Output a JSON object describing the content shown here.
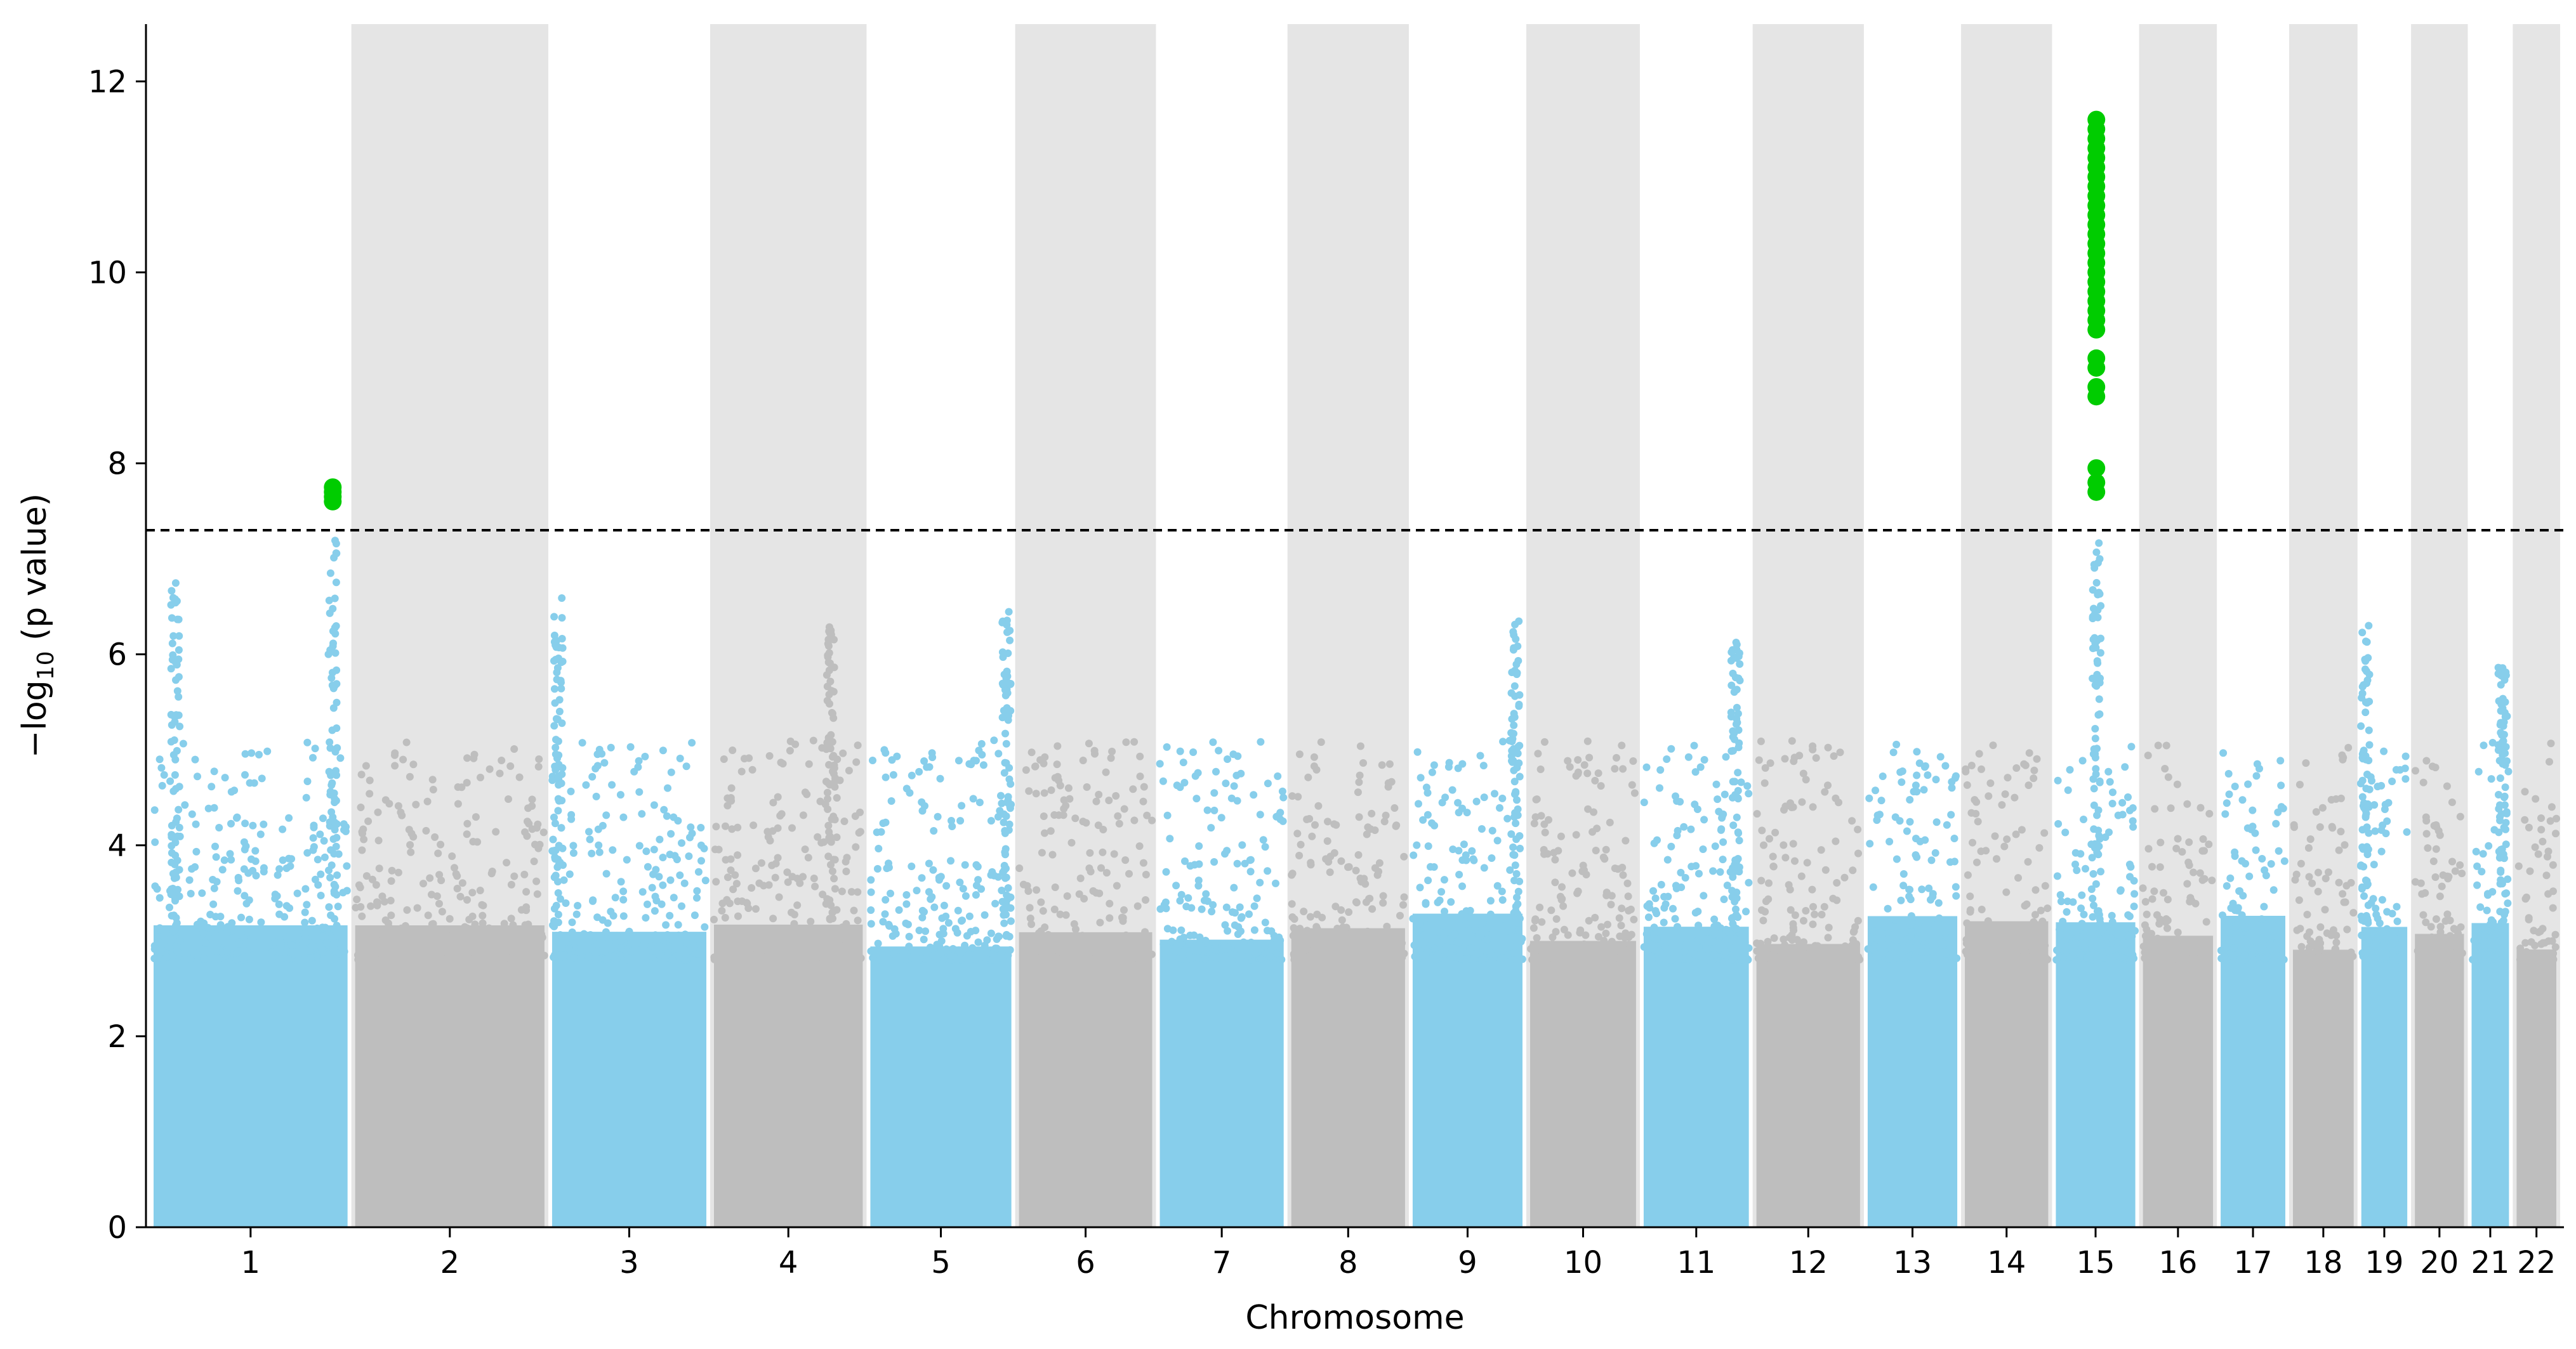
{
  "chart_data": {
    "type": "scatter",
    "xlabel": "Chromosome",
    "ylabel_prefix": "−log",
    "ylabel_sub": "10",
    "ylabel_suffix": " (p value)",
    "ylim": [
      0,
      12.6
    ],
    "yticks": [
      0,
      2,
      4,
      6,
      8,
      10,
      12
    ],
    "grid": false,
    "significance_threshold": 7.3,
    "colors": {
      "odd_chromosome": "#87ceeb",
      "even_chromosome": "#bebebe",
      "significant": "#00cc00",
      "band": "#e5e5e5",
      "threshold_line": "#000000"
    },
    "chromosomes": [
      {
        "label": "1",
        "length_mb": 249
      },
      {
        "label": "2",
        "length_mb": 243
      },
      {
        "label": "3",
        "length_mb": 198
      },
      {
        "label": "4",
        "length_mb": 191
      },
      {
        "label": "5",
        "length_mb": 181
      },
      {
        "label": "6",
        "length_mb": 171
      },
      {
        "label": "7",
        "length_mb": 159
      },
      {
        "label": "8",
        "length_mb": 146
      },
      {
        "label": "9",
        "length_mb": 141
      },
      {
        "label": "10",
        "length_mb": 136
      },
      {
        "label": "11",
        "length_mb": 135
      },
      {
        "label": "12",
        "length_mb": 133
      },
      {
        "label": "13",
        "length_mb": 115
      },
      {
        "label": "14",
        "length_mb": 107
      },
      {
        "label": "15",
        "length_mb": 102
      },
      {
        "label": "16",
        "length_mb": 90
      },
      {
        "label": "17",
        "length_mb": 83
      },
      {
        "label": "18",
        "length_mb": 78
      },
      {
        "label": "19",
        "length_mb": 59
      },
      {
        "label": "20",
        "length_mb": 63
      },
      {
        "label": "21",
        "length_mb": 48
      },
      {
        "label": "22",
        "length_mb": 51
      }
    ],
    "peaks": [
      {
        "chromosome": "1",
        "position_mb": 230,
        "max": 7.2,
        "significant": [
          7.6,
          7.65,
          7.7,
          7.75
        ]
      },
      {
        "chromosome": "1",
        "position_mb": 28,
        "max": 7.0
      },
      {
        "chromosome": "3",
        "position_mb": 8,
        "max": 6.6
      },
      {
        "chromosome": "5",
        "position_mb": 175,
        "max": 6.55
      },
      {
        "chromosome": "9",
        "position_mb": 132,
        "max": 6.4
      },
      {
        "chromosome": "11",
        "position_mb": 118,
        "max": 6.3
      },
      {
        "chromosome": "19",
        "position_mb": 5,
        "max": 6.3
      },
      {
        "chromosome": "21",
        "position_mb": 40,
        "max": 5.9
      },
      {
        "chromosome": "4",
        "position_mb": 150,
        "max": 6.3
      },
      {
        "chromosome": "15",
        "position_mb": 52,
        "max": 7.2,
        "significant": [
          7.7,
          7.8,
          7.95,
          8.7,
          8.8,
          9.0,
          9.1,
          9.4,
          9.5,
          9.6,
          9.7,
          9.8,
          9.9,
          10.0,
          10.1,
          10.2,
          10.3,
          10.4,
          10.5,
          10.6,
          10.7,
          10.8,
          10.9,
          11.0,
          11.1,
          11.2,
          11.3,
          11.4,
          11.5,
          11.6
        ]
      }
    ]
  }
}
